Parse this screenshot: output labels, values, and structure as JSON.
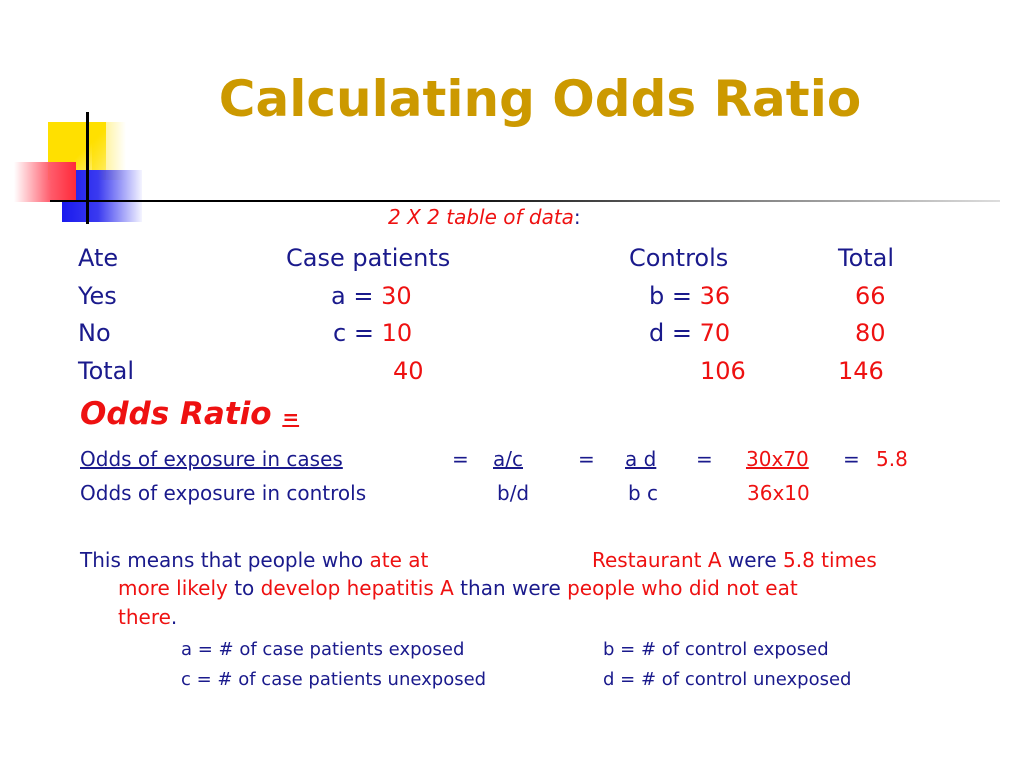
{
  "title": "Calculating Odds Ratio",
  "table_caption": "2 X 2 table of data",
  "table_caption_colon": ":",
  "table": {
    "headers": [
      "Ate",
      "Case patients",
      "Controls",
      "Total"
    ],
    "rows": [
      {
        "label": "Yes",
        "case_prefix": "a = ",
        "case_value": "30",
        "control_prefix": "b = ",
        "control_value": "36",
        "total": "66"
      },
      {
        "label": "No",
        "case_prefix": "c = ",
        "case_value": "10",
        "control_prefix": "d = ",
        "control_value": "70",
        "total": "80"
      },
      {
        "label": "Total",
        "case_value": "40",
        "control_value": "106",
        "total": "146"
      }
    ]
  },
  "odds_ratio_heading": "Odds Ratio",
  "odds_ratio_eq": "=",
  "formula": {
    "num_label": "Odds of exposure in cases",
    "den_label": "Odds of exposure in controls",
    "eq": "=",
    "num1": "a/c",
    "den1": "b/d",
    "num2": "a d",
    "den2": "b c",
    "num3": "30x70",
    "den3": "36x10",
    "result_eq": "=",
    "result": "5.8"
  },
  "interpretation": {
    "p1": "This means that people who ",
    "p2": "ate at",
    "p3": "Restaurant A",
    "p4": " were ",
    "p5": "5.8 times",
    "p6": "more likely",
    "p7": " to ",
    "p8": "develop hepatitis A",
    "p9": " than were ",
    "p10": "people who did not eat",
    "p11": "there",
    "p12": "."
  },
  "definitions": {
    "a": "a = # of case patients exposed",
    "b": "b = # of control exposed",
    "c": "c = # of case patients unexposed",
    "d": "d = # of control unexposed"
  },
  "colors": {
    "title": "#cc9900",
    "body": "#1a1a8c",
    "highlight": "#ee1111"
  }
}
